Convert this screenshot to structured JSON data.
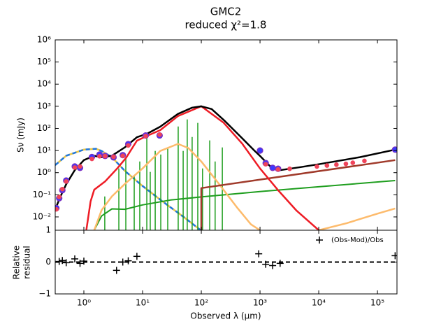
{
  "chart_data": [
    {
      "type": "line",
      "title": "GMC2",
      "subtitle": "reduced χ²=1.8",
      "ylabel": "Sν (mJy)",
      "xscale": "log",
      "yscale": "log",
      "xlim": [
        0.325,
        215000
      ],
      "ylim": [
        0.0025,
        1000000
      ],
      "yticks": [
        {
          "value": 0.01,
          "label": "10⁻²"
        },
        {
          "value": 0.1,
          "label": "10⁻¹"
        },
        {
          "value": 1,
          "label": "10⁰"
        },
        {
          "value": 10,
          "label": "10¹"
        },
        {
          "value": 100,
          "label": "10²"
        },
        {
          "value": 1000,
          "label": "10³"
        },
        {
          "value": 10000,
          "label": "10⁴"
        },
        {
          "value": 100000,
          "label": "10⁵"
        },
        {
          "value": 1000000,
          "label": "10⁶"
        }
      ],
      "series": [
        {
          "mode": "line",
          "color": "#e8c547",
          "width": 2.5,
          "x": [
            0.325,
            0.5,
            1,
            1.6,
            2,
            3,
            5,
            10,
            20,
            50,
            100
          ],
          "values": [
            2.2,
            5.8,
            11,
            12,
            9.6,
            5,
            1.2,
            0.25,
            0.06,
            0.01,
            0.0024
          ]
        },
        {
          "mode": "dashed",
          "color": "#1f77e0",
          "width": 2.5,
          "x": [
            0.325,
            0.5,
            1,
            1.6,
            2,
            3,
            5,
            10,
            20,
            50,
            100
          ],
          "values": [
            2.2,
            5.8,
            11,
            12,
            9.6,
            5,
            1.2,
            0.25,
            0.06,
            0.01,
            0.0024
          ]
        },
        {
          "mode": "spikes",
          "color": "#1f9e1f",
          "width": 1.5,
          "x": [
            2.27,
            3.94,
            5.18,
            7.2,
            8.95,
            11.8,
            13.5,
            16.4,
            20.4,
            26.8,
            40.4,
            49.1,
            57.6,
            69.8,
            87.1,
            105,
            139,
            172,
            228
          ],
          "values": [
            0.084,
            1.55,
            4.6,
            0.75,
            3.2,
            41,
            1.08,
            9.6,
            6.6,
            13.8,
            122,
            9.6,
            254,
            41,
            177,
            1.55,
            28.6,
            3.2,
            13.8
          ]
        },
        {
          "mode": "line",
          "color": "#1f9e1f",
          "width": 2,
          "x": [
            1.5,
            2,
            3,
            5,
            10,
            30,
            100,
            1000,
            10000,
            200000
          ],
          "values": [
            0.0025,
            0.011,
            0.023,
            0.022,
            0.035,
            0.058,
            0.08,
            0.14,
            0.23,
            0.44
          ]
        },
        {
          "mode": "line",
          "color": "#fdbb6c",
          "width": 2.5,
          "x": [
            1.5,
            2,
            3,
            5,
            10,
            20,
            40,
            60,
            100,
            200,
            400,
            700,
            1000,
            null,
            10000,
            30000,
            100000,
            200000
          ],
          "values": [
            0.0025,
            0.02,
            0.085,
            0.31,
            1.55,
            9.6,
            20,
            13,
            3.2,
            0.31,
            0.028,
            0.0046,
            0.0025,
            null,
            0.0025,
            0.0052,
            0.014,
            0.024
          ]
        },
        {
          "mode": "line",
          "color": "#a03a2a",
          "width": 2.5,
          "x": [
            100,
            100,
            200000
          ],
          "values": [
            0.0025,
            0.2,
            3.7
          ]
        },
        {
          "mode": "line",
          "color": "#ee1c25",
          "width": 2.5,
          "x": [
            1.1,
            1.3,
            1.5,
            2.3,
            3.7,
            5.2,
            8,
            12.8,
            20,
            40,
            100,
            240,
            500,
            1000,
            2000,
            4200,
            10000
          ],
          "values": [
            0.0025,
            0.05,
            0.17,
            0.4,
            1.55,
            4.6,
            28,
            50,
            83,
            360,
            1000,
            180,
            20,
            1.55,
            0.17,
            0.019,
            0.0025
          ]
        },
        {
          "mode": "line",
          "color": "#000000",
          "width": 2.5,
          "x": [
            0.325,
            0.4,
            0.5,
            0.7,
            1,
            1.5,
            2,
            3,
            5,
            8,
            12,
            20,
            40,
            70,
            100,
            150,
            250,
            500,
            800,
            1000,
            1500,
            2000,
            5000,
            10000,
            50000,
            200000
          ],
          "values": [
            0.022,
            0.085,
            0.3,
            1.3,
            3.7,
            5.8,
            5,
            5.8,
            14,
            40,
            58,
            120,
            450,
            870,
            1000,
            750,
            220,
            35,
            10,
            5.7,
            1.9,
            1.25,
            1.8,
            2.4,
            5,
            11
          ]
        },
        {
          "mode": "circles",
          "color": "#3b3bff",
          "edge": "#7b2fbf",
          "x": [
            0.34,
            0.38,
            0.43,
            0.5,
            0.7,
            0.86,
            1.37,
            1.85,
            2.3,
            3.2,
            4.6,
            5.7,
            11.3,
            19.5,
            1000,
            1250,
            1640,
            2030,
            200000
          ],
          "values": [
            0.025,
            0.07,
            0.16,
            0.44,
            1.9,
            1.65,
            5.1,
            6.6,
            5.7,
            4.9,
            6.2,
            19.5,
            48,
            48,
            10,
            2.7,
            1.65,
            1.5,
            11
          ]
        },
        {
          "mode": "dots",
          "color": "#f0445a",
          "x": [
            0.34,
            0.38,
            0.43,
            0.5,
            0.7,
            0.86,
            1.37,
            1.85,
            2.3,
            3.2,
            4.6,
            5.7,
            11.3,
            19.5,
            1250,
            2030,
            3200,
            9300,
            13800,
            20000,
            29000,
            38000,
            60000
          ],
          "values": [
            0.022,
            0.08,
            0.18,
            0.4,
            1.7,
            1.9,
            4.2,
            5.5,
            5.6,
            5.2,
            5.8,
            17,
            45,
            52,
            2.4,
            1.4,
            1.5,
            1.9,
            2.1,
            2.3,
            2.5,
            2.8,
            3.4
          ]
        }
      ]
    },
    {
      "type": "scatter",
      "ylabel": [
        "Relative",
        "residual"
      ],
      "xlabel": "Observed λ (μm)",
      "xscale": "log",
      "xlim": [
        0.325,
        215000
      ],
      "ylim": [
        -1,
        1
      ],
      "xticks": [
        {
          "value": 1,
          "label": "10⁰"
        },
        {
          "value": 10,
          "label": "10¹"
        },
        {
          "value": 100,
          "label": "10²"
        },
        {
          "value": 1000,
          "label": "10³"
        },
        {
          "value": 10000,
          "label": "10⁴"
        },
        {
          "value": 100000,
          "label": "10⁵"
        }
      ],
      "yticks": [
        {
          "value": -1,
          "label": "−1"
        },
        0,
        1
      ],
      "zero_line": 0,
      "legend": "upper right",
      "series": [
        {
          "name": "(Obs-Mod)/Obs",
          "color": "#000000",
          "x": [
            0.38,
            0.43,
            0.5,
            0.7,
            0.86,
            1.0,
            3.6,
            4.6,
            5.7,
            8,
            950,
            1250,
            1640,
            2200,
            200000
          ],
          "values": [
            0.02,
            0.05,
            -0.02,
            0.1,
            -0.04,
            0.03,
            -0.26,
            0.0,
            0.04,
            0.18,
            0.26,
            -0.07,
            -0.11,
            -0.04,
            0.2
          ]
        }
      ]
    }
  ]
}
